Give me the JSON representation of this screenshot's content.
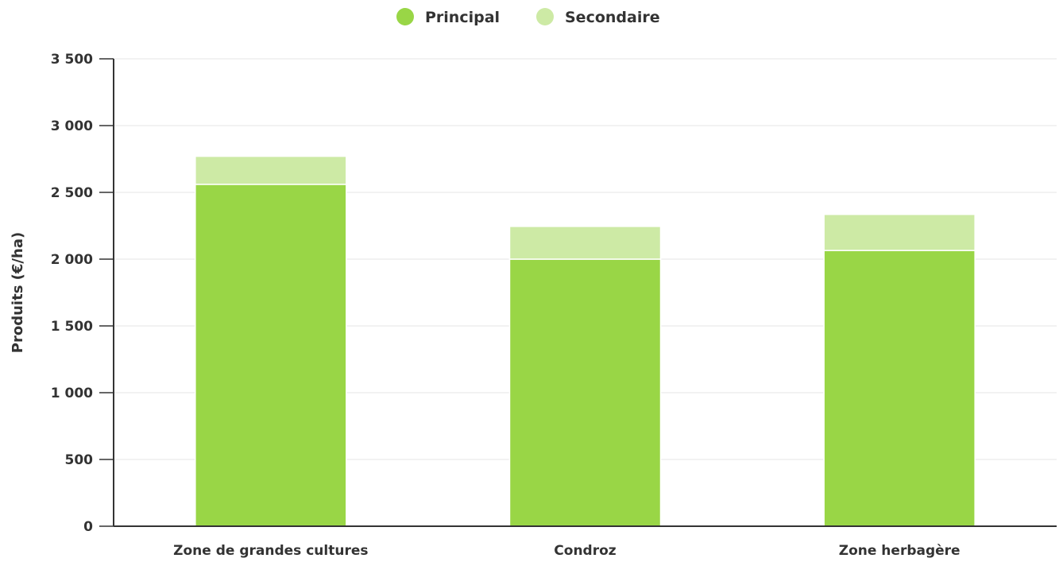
{
  "chart_data": {
    "type": "bar",
    "stacked": true,
    "categories": [
      "Zone de grandes cultures",
      "Condroz",
      "Zone herbagère"
    ],
    "series": [
      {
        "name": "Principal",
        "color": "#99d646",
        "values": [
          2560,
          2000,
          2065
        ]
      },
      {
        "name": "Secondaire",
        "color": "#cdeaa5",
        "values": [
          210,
          245,
          270
        ]
      }
    ],
    "title": "",
    "xlabel": "",
    "ylabel": "Produits (€/ha)",
    "ylim": [
      0,
      3500
    ],
    "yticks": [
      0,
      500,
      1000,
      1500,
      2000,
      2500,
      3000,
      3500
    ],
    "ytick_labels": [
      "0",
      "500",
      "1 000",
      "1 500",
      "2 000",
      "2 500",
      "3 000",
      "3 500"
    ],
    "grid": true,
    "legend_position": "top-center"
  }
}
